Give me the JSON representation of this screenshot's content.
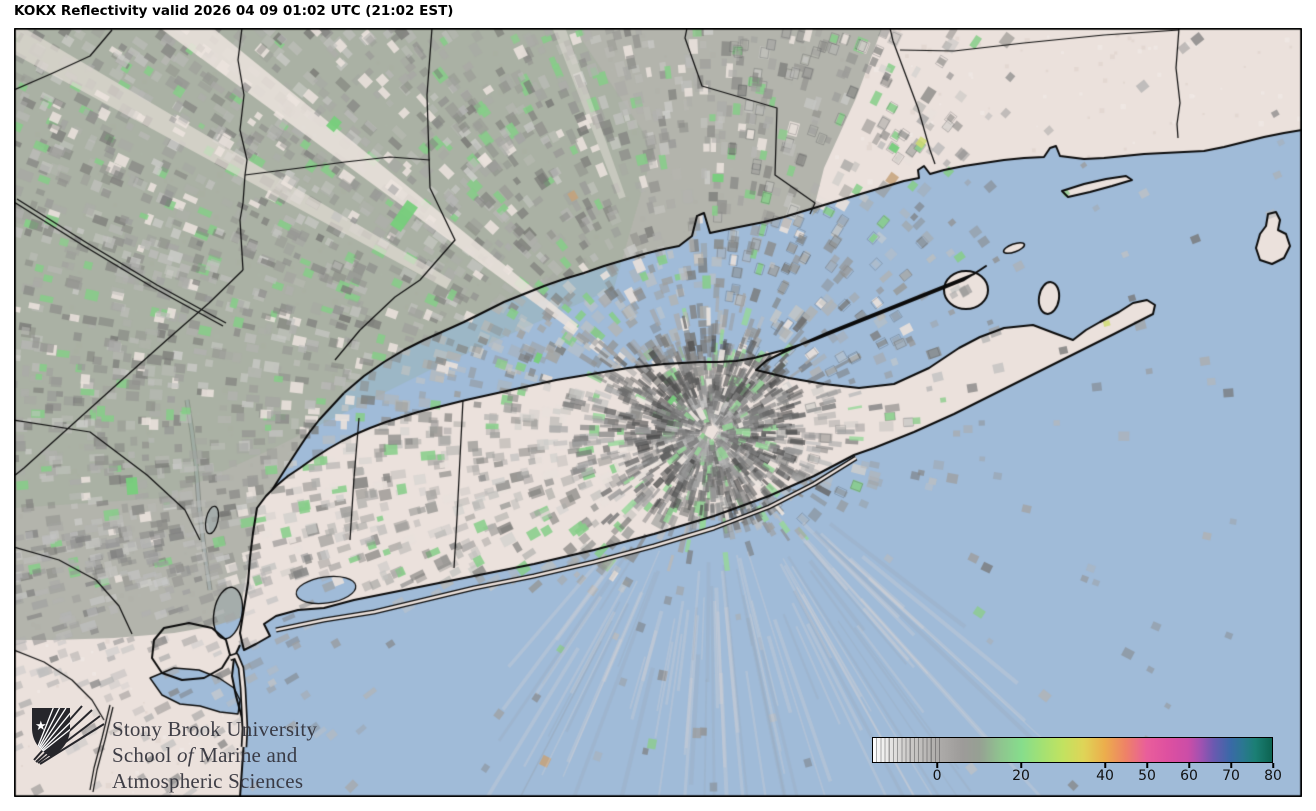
{
  "header": {
    "title": "KOKX Reflectivity valid 2026 04 09 01:02 UTC (21:02 EST)"
  },
  "branding": {
    "logo_icon": "stony-brook-shield",
    "line1": "Stony Brook University",
    "line2_before_italic": "School ",
    "line2_italic": "of",
    "line2_after_italic": " Marine and",
    "line3": "Atmospheric Sciences"
  },
  "colorbar": {
    "tick_labels": [
      "0",
      "20",
      "40",
      "50",
      "60",
      "70",
      "80"
    ],
    "tick_values": [
      0,
      20,
      40,
      50,
      60,
      70,
      80
    ],
    "value_min": -15.5,
    "value_max": 80,
    "stops": [
      {
        "v": -15.5,
        "c": "#ffffff"
      },
      {
        "v": -8,
        "c": "#d2d0ce"
      },
      {
        "v": 0,
        "c": "#aeacaa"
      },
      {
        "v": 6,
        "c": "#9d9b99"
      },
      {
        "v": 10,
        "c": "#96a093"
      },
      {
        "v": 15,
        "c": "#8fc48f"
      },
      {
        "v": 20,
        "c": "#86dd8c"
      },
      {
        "v": 25,
        "c": "#a3e173"
      },
      {
        "v": 30,
        "c": "#c2e260"
      },
      {
        "v": 35,
        "c": "#dfd457"
      },
      {
        "v": 40,
        "c": "#ecad4c"
      },
      {
        "v": 45,
        "c": "#ee8267"
      },
      {
        "v": 50,
        "c": "#e95e9b"
      },
      {
        "v": 55,
        "c": "#de50a0"
      },
      {
        "v": 60,
        "c": "#cb4da7"
      },
      {
        "v": 63,
        "c": "#a052b1"
      },
      {
        "v": 66,
        "c": "#6b59b0"
      },
      {
        "v": 70,
        "c": "#3a69a7"
      },
      {
        "v": 73,
        "c": "#2b7791"
      },
      {
        "v": 76,
        "c": "#1b7f74"
      },
      {
        "v": 80,
        "c": "#0d6351"
      }
    ]
  },
  "map_colors": {
    "ocean": "#a0bbd8",
    "land": "#ebe1dc",
    "coastline": "#0b0b0b",
    "county_line": "#101010",
    "echo_blanket": "rgba(166,170,161,0.82)",
    "echo_green": "#86ce88",
    "bright_green": "#77cf7c",
    "blocked_ray": "rgba(236,228,222,0.85)"
  }
}
